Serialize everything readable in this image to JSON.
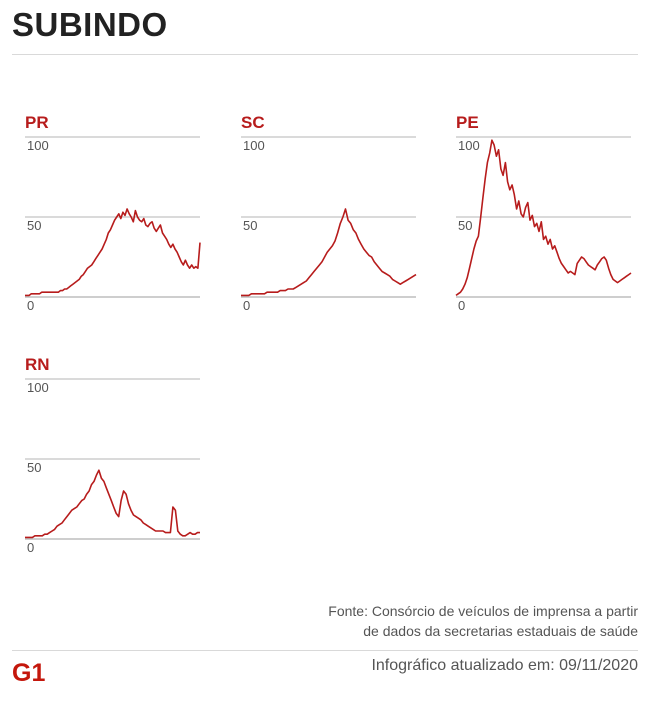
{
  "headline": "SUBINDO",
  "footer": {
    "source_line1": "Fonte: Consórcio de veículos de imprensa a partir",
    "source_line2": "de dados da secretarias estaduais de saúde",
    "updated": "Infográfico atualizado em: 09/11/2020",
    "logo_text": "G1"
  },
  "colors": {
    "accent": "#b71c1c",
    "gridline": "#9e9e9e",
    "headline": "#222222"
  },
  "chart_data": [
    {
      "type": "line",
      "title": "PR",
      "ylim": [
        0,
        100
      ],
      "yticks": [
        "100",
        "50",
        "0"
      ],
      "y": [
        1,
        1,
        1,
        2,
        2,
        2,
        2,
        2,
        3,
        3,
        3,
        3,
        3,
        3,
        3,
        3,
        3,
        4,
        4,
        5,
        5,
        6,
        7,
        8,
        9,
        10,
        11,
        13,
        14,
        16,
        18,
        19,
        20,
        22,
        24,
        26,
        28,
        30,
        33,
        36,
        40,
        42,
        45,
        48,
        50,
        52,
        49,
        53,
        51,
        55,
        52,
        50,
        47,
        54,
        50,
        48,
        47,
        49,
        45,
        44,
        46,
        47,
        43,
        41,
        43,
        45,
        40,
        38,
        36,
        33,
        31,
        33,
        30,
        28,
        25,
        22,
        20,
        23,
        20,
        18,
        20,
        18,
        19,
        18,
        34
      ]
    },
    {
      "type": "line",
      "title": "SC",
      "ylim": [
        0,
        100
      ],
      "yticks": [
        "100",
        "50",
        "0"
      ],
      "y": [
        1,
        1,
        1,
        1,
        2,
        2,
        2,
        2,
        2,
        2,
        3,
        3,
        3,
        3,
        3,
        4,
        4,
        4,
        5,
        5,
        5,
        6,
        7,
        8,
        9,
        10,
        12,
        14,
        16,
        18,
        20,
        22,
        25,
        28,
        30,
        32,
        35,
        40,
        46,
        50,
        55,
        48,
        46,
        42,
        40,
        36,
        33,
        30,
        28,
        26,
        25,
        22,
        20,
        18,
        16,
        15,
        14,
        13,
        11,
        10,
        9,
        8,
        9,
        10,
        11,
        12,
        13,
        14
      ]
    },
    {
      "type": "line",
      "title": "PE",
      "ylim": [
        0,
        100
      ],
      "yticks": [
        "100",
        "50",
        "0"
      ],
      "y": [
        1,
        2,
        3,
        5,
        8,
        12,
        18,
        24,
        30,
        35,
        38,
        50,
        62,
        74,
        84,
        90,
        98,
        95,
        88,
        92,
        80,
        76,
        84,
        72,
        67,
        70,
        64,
        55,
        60,
        52,
        50,
        56,
        59,
        48,
        51,
        44,
        46,
        41,
        47,
        36,
        38,
        33,
        36,
        30,
        32,
        28,
        24,
        21,
        19,
        17,
        15,
        16,
        15,
        14,
        21,
        23,
        25,
        24,
        22,
        20,
        19,
        18,
        17,
        20,
        22,
        24,
        25,
        23,
        18,
        14,
        11,
        10,
        9,
        10,
        11,
        12,
        13,
        14,
        15
      ]
    },
    {
      "type": "line",
      "title": "RN",
      "ylim": [
        0,
        100
      ],
      "yticks": [
        "100",
        "50",
        "0"
      ],
      "y": [
        1,
        1,
        1,
        1,
        2,
        2,
        2,
        2,
        3,
        3,
        4,
        5,
        6,
        8,
        9,
        10,
        12,
        14,
        16,
        18,
        19,
        20,
        22,
        24,
        25,
        28,
        30,
        34,
        36,
        40,
        43,
        38,
        36,
        32,
        28,
        24,
        20,
        16,
        14,
        24,
        30,
        28,
        22,
        18,
        15,
        14,
        13,
        12,
        10,
        9,
        8,
        7,
        6,
        5,
        5,
        5,
        5,
        4,
        4,
        4,
        20,
        18,
        5,
        3,
        2,
        2,
        3,
        4,
        3,
        3,
        4,
        4
      ]
    }
  ]
}
